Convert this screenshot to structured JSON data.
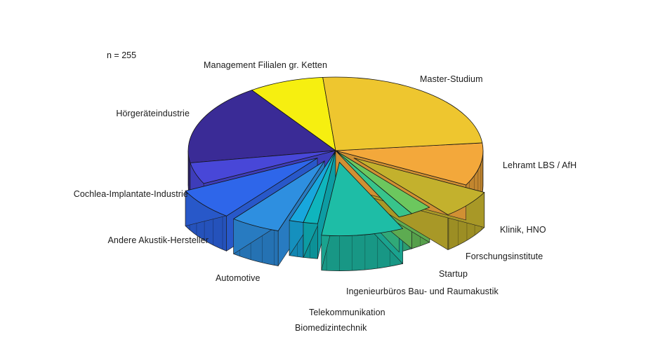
{
  "figure": {
    "background": "#ffffff",
    "annotation": "n = 255"
  },
  "chart_data": {
    "type": "pie",
    "projection": "3d",
    "title": "",
    "annotation": "n = 255",
    "n_total": 255,
    "start_angle_deg": 95,
    "direction": "ccw",
    "legend": "none - direct slice labels",
    "slices": [
      {
        "label": "Management Filialen gr. Ketten",
        "value": 21,
        "color": "#f6ef10",
        "exploded": false
      },
      {
        "label": "Hörgeräteindustrie",
        "value": 46,
        "color": "#3a2b96",
        "exploded": false
      },
      {
        "label": "Cochlea-Implantate-Industrie",
        "value": 12,
        "color": "#4847d8",
        "exploded": false
      },
      {
        "label": "Andere Akustik-Hersteller",
        "value": 18,
        "color": "#2e66ea",
        "exploded": true
      },
      {
        "label": "Automotive",
        "value": 14,
        "color": "#2e8fe0",
        "exploded": true
      },
      {
        "label": "Biomedizintechnik",
        "value": 4,
        "color": "#18a7dd",
        "exploded": false
      },
      {
        "label": "Telekommunikation",
        "value": 4,
        "color": "#0fb5bd",
        "exploded": false
      },
      {
        "label": "Ingenieurbüros Bau- und Raumakustik",
        "value": 23,
        "color": "#1ebda6",
        "exploded": true
      },
      {
        "label": "Startup",
        "value": 4,
        "color": "#38c48b",
        "exploded": false
      },
      {
        "label": "Forschungsinstitute",
        "value": 6,
        "color": "#6cc75e",
        "exploded": false
      },
      {
        "label": "Klinik, HNO",
        "value": 16,
        "color": "#c3b12d",
        "exploded": true
      },
      {
        "label": "Lehramt LBS / AfH",
        "value": 24,
        "color": "#f3a83b",
        "exploded": false
      },
      {
        "label": "Master-Studium",
        "value": 63,
        "color": "#eec62f",
        "exploded": false
      }
    ]
  }
}
